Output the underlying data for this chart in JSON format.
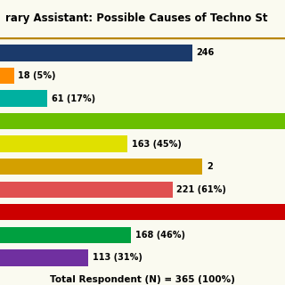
{
  "title": "rary Assistant: Possible Causes of Techno St",
  "bars": [
    {
      "value": 246,
      "label": "246",
      "color": "#1B3A6B",
      "pct": 0.674
    },
    {
      "value": 18,
      "label": "18 (5%)",
      "color": "#FF8C00",
      "pct": 0.049
    },
    {
      "value": 61,
      "label": "61 (17%)",
      "color": "#00B0A0",
      "pct": 0.167
    },
    {
      "value": 365,
      "label": "",
      "color": "#6ABF00",
      "pct": 1.0
    },
    {
      "value": 163,
      "label": "163 (45%)",
      "color": "#E0E000",
      "pct": 0.447
    },
    {
      "value": 259,
      "label": "2",
      "color": "#D4A000",
      "pct": 0.71
    },
    {
      "value": 221,
      "label": "221 (61%)",
      "color": "#E05050",
      "pct": 0.605
    },
    {
      "value": 365,
      "label": "",
      "color": "#CC0000",
      "pct": 1.0
    },
    {
      "value": 168,
      "label": "168 (46%)",
      "color": "#00A040",
      "pct": 0.46
    },
    {
      "value": 113,
      "label": "113 (31%)",
      "color": "#7030A0",
      "pct": 0.309
    }
  ],
  "footer": "Total Respondent (N) = 365 (100%)",
  "bg_color": "#FAFAF0",
  "title_bg": "#F0E8C0",
  "max_val": 365,
  "bar_height": 0.72,
  "bar_spacing": 1.0,
  "title_fontsize": 8.5,
  "label_fontsize": 7.0
}
